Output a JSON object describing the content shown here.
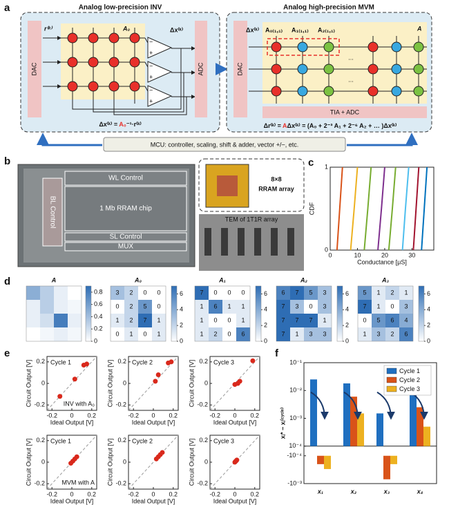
{
  "panel_labels": [
    "a",
    "b",
    "c",
    "d",
    "e",
    "f"
  ],
  "figure_a": {
    "left_title": "Analog low-precision INV",
    "right_title": "Analog high-precision MVM",
    "dac": "DAC",
    "adc": "ADC",
    "r_label": "r⁽ᵏ⁾",
    "a0_label": "A₀",
    "dx_label": "Δx⁽ᵏ⁾",
    "plus": "+",
    "minus": "−",
    "eq_left": [
      "Δx⁽ᵏ⁾ = ",
      "A₀",
      "⁻¹·r⁽ᵏ⁾"
    ],
    "a0_11": "A₀₍₁,₁₎",
    "a1_11": "A₁₍₁,₁₎",
    "a2_11": "A₂₍₁,₁₎",
    "a_label": "A",
    "ellipsis": "...",
    "tia_adc": "TIA + ADC",
    "eq_right": [
      "Δr⁽ᵏ⁾ = ",
      "A",
      "Δx⁽ᵏ⁾ = (A₀ + 2⁻³ A₁ + 2⁻⁶ A₂ + … )Δx⁽ᵏ⁾"
    ],
    "mcu": "MCU: controller, scaling, shift & adder, vector +/−, etc."
  },
  "figure_b": {
    "wl": "WL Control",
    "bl": "BL Control",
    "chip": "1 Mb RRAM chip",
    "sl": "SL Control",
    "mux": "MUX",
    "array_size": "8×8",
    "array_name": "RRAM array",
    "tem": "TEM of 1T1R array"
  },
  "chart_data": [
    {
      "type": "line",
      "xlabel": "Conductance [μS]",
      "ylabel": "CDF",
      "xlim": [
        0,
        38
      ],
      "ylim": [
        0,
        1
      ],
      "xticks": [
        0,
        10,
        20,
        30
      ],
      "yticks": [
        0,
        1
      ],
      "series": [
        {
          "color": "#D95319",
          "x": [
            2.5,
            3.5,
            4.5
          ],
          "values": [
            0,
            0.5,
            1
          ]
        },
        {
          "color": "#EDB120",
          "x": [
            7.5,
            8.8,
            10
          ],
          "values": [
            0,
            0.5,
            1
          ]
        },
        {
          "color": "#77AC30",
          "x": [
            12.5,
            13.8,
            15
          ],
          "values": [
            0,
            0.5,
            1
          ]
        },
        {
          "color": "#7E2F8E",
          "x": [
            17.5,
            18.8,
            20
          ],
          "values": [
            0,
            0.5,
            1
          ]
        },
        {
          "color": "#77AC30",
          "x": [
            21.5,
            22.8,
            24
          ],
          "values": [
            0,
            0.5,
            1
          ]
        },
        {
          "color": "#4DBEEE",
          "x": [
            26.5,
            27.6,
            28.8
          ],
          "values": [
            0,
            0.5,
            1
          ]
        },
        {
          "color": "#A2142F",
          "x": [
            30.5,
            31.5,
            32.5
          ],
          "values": [
            0,
            0.5,
            1
          ]
        },
        {
          "color": "#0072BD",
          "x": [
            33.5,
            34.5,
            35.5
          ],
          "values": [
            0,
            0.5,
            1
          ]
        }
      ]
    },
    {
      "type": "heatmap",
      "title": "A",
      "show_values": false,
      "colormap": [
        "#ffffff",
        "#2e6db4"
      ],
      "zlim": [
        0,
        0.9
      ],
      "zticks": [
        0,
        0.2,
        0.4,
        0.6,
        0.8
      ],
      "values": [
        [
          0.5,
          0.3,
          0.1,
          0
        ],
        [
          0.1,
          0.3,
          0.1,
          0.05
        ],
        [
          0.1,
          0.2,
          0.8,
          0.1
        ],
        [
          0,
          0.05,
          0.1,
          0.05
        ]
      ]
    },
    {
      "type": "heatmap",
      "title": "A₀",
      "show_values": true,
      "colormap": [
        "#ffffff",
        "#2e6db4"
      ],
      "zlim": [
        0,
        7
      ],
      "zticks": [
        0,
        2,
        4,
        6
      ],
      "values": [
        [
          3,
          2,
          0,
          0
        ],
        [
          0,
          2,
          5,
          0
        ],
        [
          1,
          2,
          7,
          1
        ],
        [
          0,
          1,
          0,
          1
        ]
      ]
    },
    {
      "type": "heatmap",
      "title": "A₁",
      "show_values": true,
      "colormap": [
        "#ffffff",
        "#2e6db4"
      ],
      "zlim": [
        0,
        7
      ],
      "zticks": [
        0,
        2,
        4,
        6
      ],
      "values": [
        [
          7,
          0,
          0,
          0
        ],
        [
          1,
          6,
          1,
          1
        ],
        [
          1,
          0,
          0,
          1
        ],
        [
          1,
          2,
          0,
          6
        ]
      ]
    },
    {
      "type": "heatmap",
      "title": "A₂",
      "show_values": true,
      "colormap": [
        "#ffffff",
        "#2e6db4"
      ],
      "zlim": [
        0,
        7
      ],
      "zticks": [
        0,
        2,
        4,
        6
      ],
      "values": [
        [
          6,
          7,
          5,
          3
        ],
        [
          7,
          3,
          0,
          3
        ],
        [
          7,
          7,
          7,
          1
        ],
        [
          7,
          1,
          3,
          3
        ]
      ]
    },
    {
      "type": "heatmap",
      "title": "A₃",
      "show_values": true,
      "colormap": [
        "#ffffff",
        "#2e6db4"
      ],
      "zlim": [
        0,
        7
      ],
      "zticks": [
        0,
        2,
        4,
        6
      ],
      "values": [
        [
          5,
          1,
          2,
          1
        ],
        [
          7,
          1,
          0,
          3
        ],
        [
          0,
          5,
          6,
          4
        ],
        [
          1,
          3,
          2,
          6
        ]
      ]
    },
    {
      "type": "scatter",
      "title": "Cycle 1",
      "annotation": "INV with A₀",
      "xlabel": "Ideal Output [V]",
      "ylabel": "Circuit Output [V]",
      "color": "#d9291c",
      "diagonal": true,
      "xlim": [
        -0.25,
        0.25
      ],
      "ylim": [
        -0.25,
        0.25
      ],
      "xticks": [
        -0.2,
        0,
        0.2
      ],
      "yticks": [
        -0.2,
        0,
        0.2
      ],
      "x": [
        -0.12,
        0.03,
        0.12,
        0.15
      ],
      "values": [
        -0.12,
        0.04,
        0.17,
        0.18
      ]
    },
    {
      "type": "scatter",
      "title": "Cycle 2",
      "xlabel": "Ideal Output [V]",
      "ylabel": "Circuit Output [V]",
      "color": "#d9291c",
      "diagonal": true,
      "xlim": [
        -0.25,
        0.25
      ],
      "ylim": [
        -0.25,
        0.25
      ],
      "xticks": [
        -0.2,
        0,
        0.2
      ],
      "yticks": [
        -0.2,
        0,
        0.2
      ],
      "x": [
        0.02,
        0.05,
        0.15,
        0.18
      ],
      "values": [
        0.02,
        0.08,
        0.19,
        0.2
      ]
    },
    {
      "type": "scatter",
      "title": "Cycle 3",
      "xlabel": "Ideal Output [V]",
      "ylabel": "Circuit Output [V]",
      "color": "#d9291c",
      "diagonal": true,
      "xlim": [
        -0.25,
        0.25
      ],
      "ylim": [
        -0.25,
        0.25
      ],
      "xticks": [
        -0.2,
        0,
        0.2
      ],
      "yticks": [
        -0.2,
        0,
        0.2
      ],
      "x": [
        0.0,
        0.03,
        0.05,
        0.18
      ],
      "values": [
        -0.01,
        0.0,
        0.02,
        0.21
      ]
    },
    {
      "type": "scatter",
      "title": "Cycle 1",
      "annotation": "MVM with A",
      "xlabel": "Ideal Output [V]",
      "ylabel": "Circuit Output [V]",
      "color": "#d9291c",
      "diagonal": true,
      "xlim": [
        -0.25,
        0.25
      ],
      "ylim": [
        -0.25,
        0.25
      ],
      "xticks": [
        -0.2,
        0,
        0.2
      ],
      "yticks": [
        -0.2,
        0,
        0.2
      ],
      "x": [
        -0.01,
        0.01,
        0.03,
        0.05
      ],
      "values": [
        -0.01,
        0.01,
        0.03,
        0.05
      ]
    },
    {
      "type": "scatter",
      "title": "Cycle 2",
      "xlabel": "Ideal Output [V]",
      "ylabel": "Circuit Output [V]",
      "color": "#d9291c",
      "diagonal": true,
      "xlim": [
        -0.25,
        0.25
      ],
      "ylim": [
        -0.25,
        0.25
      ],
      "xticks": [
        -0.2,
        0,
        0.2
      ],
      "yticks": [
        -0.2,
        0,
        0.2
      ],
      "x": [
        0.03,
        0.05,
        0.07,
        0.09
      ],
      "values": [
        0.03,
        0.05,
        0.07,
        0.09
      ]
    },
    {
      "type": "scatter",
      "title": "Cycle 3",
      "xlabel": "Ideal Output [V]",
      "ylabel": "Circuit Output [V]",
      "color": "#d9291c",
      "diagonal": true,
      "xlim": [
        -0.25,
        0.25
      ],
      "ylim": [
        -0.25,
        0.25
      ],
      "xticks": [
        -0.2,
        0,
        0.2
      ],
      "yticks": [
        -0.2,
        0,
        0.2
      ],
      "x": [
        0.0,
        0.01,
        0.01,
        0.02
      ],
      "values": [
        0.0,
        0.01,
        0.01,
        0.02
      ]
    },
    {
      "type": "bar",
      "ylabel": "xᵢ* − xᵢ⁽ᶜʸᶜˡᵉ⁾",
      "yscale": "symlog",
      "linthresh": 0.0001,
      "legend": "upper right",
      "ylim": [
        -0.001,
        0.1
      ],
      "yticks": [
        {
          "value": 0.1,
          "label": "10⁻¹"
        },
        {
          "value": 0.01,
          "label": "10⁻²"
        },
        {
          "value": 0.001,
          "label": "10⁻³"
        },
        {
          "value": 0.0001,
          "label": "10⁻⁴"
        },
        {
          "value": -0.0001,
          "label": "-10⁻⁴"
        },
        {
          "value": -0.001,
          "label": "-10⁻³"
        }
      ],
      "categories": [
        "x₁",
        "x₂",
        "x₃",
        "x₄"
      ],
      "series": [
        {
          "name": "Cycle 1",
          "color": "#1f6fc0",
          "values": [
            0.025,
            0.018,
            0.0015,
            0.025
          ]
        },
        {
          "name": "Cycle 2",
          "color": "#d95319",
          "values": [
            -0.0002,
            0.006,
            -0.0007,
            0.0025
          ]
        },
        {
          "name": "Cycle 3",
          "color": "#edb120",
          "values": [
            -0.0003,
            0.0015,
            -0.0002,
            0.0005
          ]
        }
      ]
    }
  ]
}
